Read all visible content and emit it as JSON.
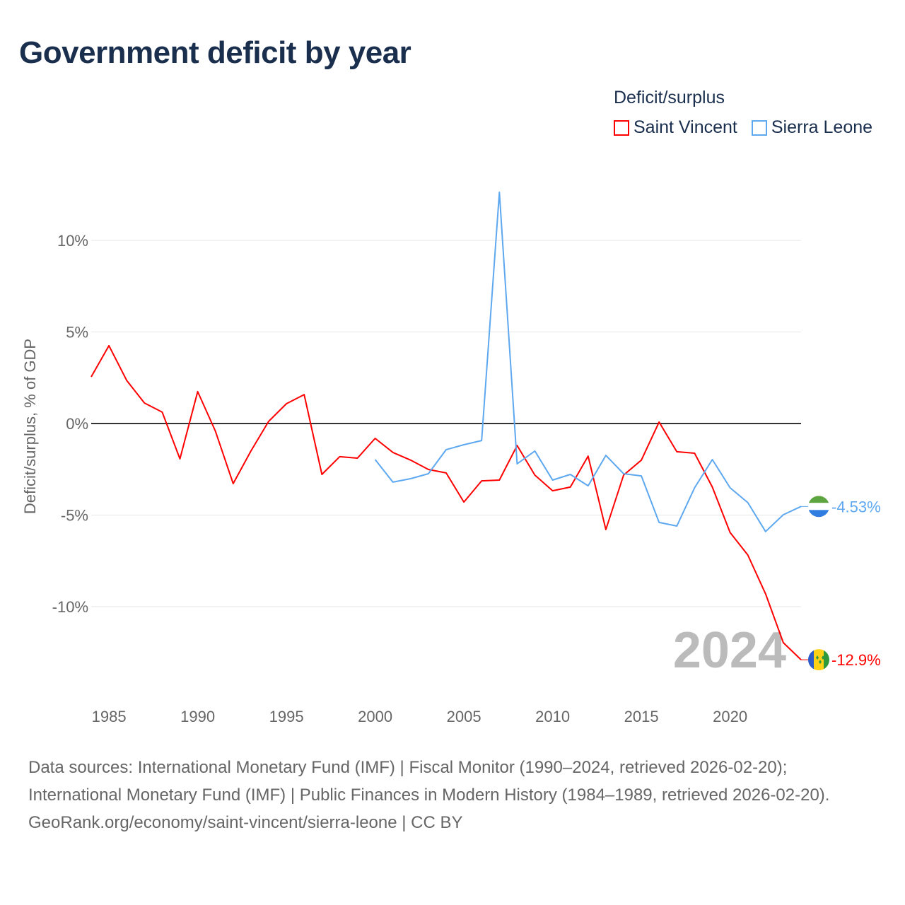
{
  "title": "Government deficit by year",
  "legend": {
    "title": "Deficit/surplus",
    "items": [
      {
        "label": "Saint Vincent",
        "color": "#ff0000"
      },
      {
        "label": "Sierra Leone",
        "color": "#5ea8f0"
      }
    ]
  },
  "chart_data": {
    "type": "line",
    "title": "Government deficit by year",
    "xlabel": "",
    "ylabel": "Deficit/surplus, % of GDP",
    "xlim": [
      1984,
      2024
    ],
    "ylim": [
      -13,
      13
    ],
    "x_ticks": [
      1985,
      1990,
      1995,
      2000,
      2005,
      2010,
      2015,
      2020
    ],
    "y_ticks": [
      {
        "value": 10,
        "label": "10%"
      },
      {
        "value": 5,
        "label": "5%"
      },
      {
        "value": 0,
        "label": "0%"
      },
      {
        "value": -5,
        "label": "-5%"
      },
      {
        "value": -10,
        "label": "-10%"
      }
    ],
    "year_watermark": "2024",
    "series": [
      {
        "name": "Saint Vincent",
        "color": "#ff0000",
        "end_label": "-12.9%",
        "flag": "saint-vincent-flag",
        "x": [
          1984,
          1985,
          1986,
          1987,
          1988,
          1989,
          1990,
          1991,
          1992,
          1993,
          1994,
          1995,
          1996,
          1997,
          1998,
          1999,
          2000,
          2001,
          2002,
          2003,
          2004,
          2005,
          2006,
          2007,
          2008,
          2009,
          2010,
          2011,
          2012,
          2013,
          2014,
          2015,
          2016,
          2017,
          2018,
          2019,
          2020,
          2021,
          2022,
          2023,
          2024
        ],
        "values": [
          2.55,
          4.25,
          2.35,
          1.12,
          0.62,
          -1.93,
          1.74,
          -0.42,
          -3.28,
          -1.5,
          0.12,
          1.08,
          1.58,
          -2.78,
          -1.81,
          -1.89,
          -0.81,
          -1.58,
          -2.0,
          -2.51,
          -2.7,
          -4.29,
          -3.13,
          -3.09,
          -1.2,
          -2.82,
          -3.67,
          -3.47,
          -1.78,
          -5.79,
          -2.82,
          -2.0,
          0.08,
          -1.54,
          -1.62,
          -3.47,
          -5.95,
          -7.18,
          -9.3,
          -11.97,
          -12.9
        ]
      },
      {
        "name": "Sierra Leone",
        "color": "#5ea8f0",
        "end_label": "-4.53%",
        "flag": "sierra-leone-flag",
        "x": [
          2000,
          2001,
          2002,
          2003,
          2004,
          2005,
          2006,
          2007,
          2008,
          2009,
          2010,
          2011,
          2012,
          2013,
          2014,
          2015,
          2016,
          2017,
          2018,
          2019,
          2020,
          2021,
          2022,
          2023,
          2024
        ],
        "values": [
          -1.97,
          -3.2,
          -3.01,
          -2.74,
          -1.43,
          -1.16,
          -0.93,
          12.63,
          -2.2,
          -1.5,
          -3.09,
          -2.78,
          -3.4,
          -1.74,
          -2.74,
          -2.86,
          -5.4,
          -5.6,
          -3.51,
          -1.97,
          -3.51,
          -4.32,
          -5.9,
          -4.98,
          -4.53
        ]
      }
    ]
  },
  "footer": {
    "sources": "Data sources: International Monetary Fund (IMF) | Fiscal Monitor (1990–2024, retrieved 2026-02-20); International Monetary Fund (IMF) | Public Finances in Modern History (1984–1989, retrieved 2026-02-20).",
    "credit": "GeoRank.org/economy/saint-vincent/sierra-leone | CC BY"
  }
}
